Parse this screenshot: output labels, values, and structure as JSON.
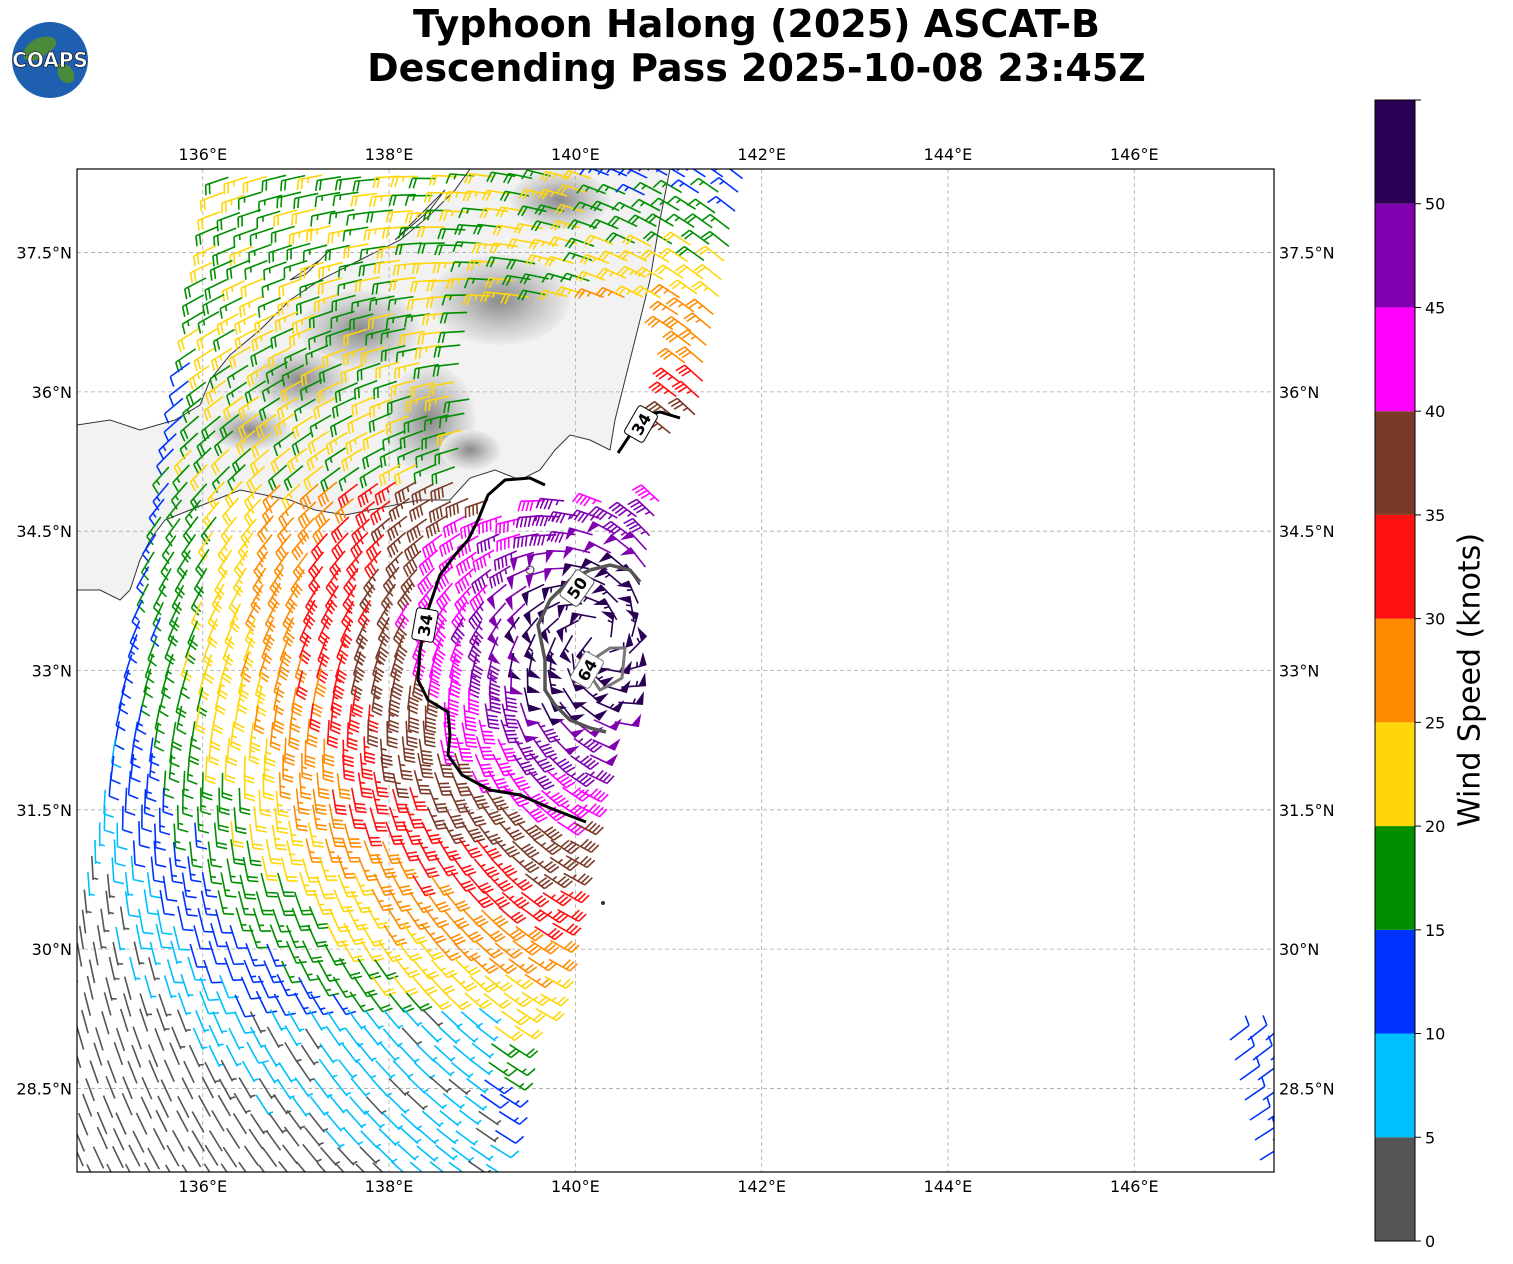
{
  "title": {
    "line1": "Typhoon Halong (2025) ASCAT-B",
    "line2": "Descending Pass 2025-10-08 23:45Z"
  },
  "logo": {
    "text": "COAPS",
    "icon": "globe-logo-icon"
  },
  "map": {
    "lon_range": [
      134.65,
      147.5
    ],
    "lat_range": [
      27.6,
      38.4
    ],
    "lon_ticks": [
      "136°E",
      "138°E",
      "140°E",
      "142°E",
      "144°E",
      "146°E"
    ],
    "lat_ticks": [
      "37.5°N",
      "36°N",
      "34.5°N",
      "33°N",
      "31.5°N",
      "30°N",
      "28.5°N"
    ],
    "gridlines": true,
    "land_shading": "grayscale terrain",
    "wind_barbs": "ASCAT-B descending swath, colored by wind speed",
    "wind_radii_contours": [
      {
        "label": "34",
        "color": "#000000"
      },
      {
        "label": "50",
        "color": "#555555"
      },
      {
        "label": "64",
        "color": "#777777"
      }
    ]
  },
  "colorbar": {
    "label": "Wind Speed (knots)",
    "ticks": [
      "0",
      "5",
      "10",
      "15",
      "20",
      "25",
      "30",
      "35",
      "40",
      "45",
      "50"
    ],
    "bins": [
      {
        "min": 0,
        "max": 5,
        "color": "#555555"
      },
      {
        "min": 5,
        "max": 10,
        "color": "#00bfff"
      },
      {
        "min": 10,
        "max": 15,
        "color": "#0033ff"
      },
      {
        "min": 15,
        "max": 20,
        "color": "#008f00"
      },
      {
        "min": 20,
        "max": 25,
        "color": "#ffd60a"
      },
      {
        "min": 25,
        "max": 30,
        "color": "#ff8c00"
      },
      {
        "min": 30,
        "max": 35,
        "color": "#ff1010"
      },
      {
        "min": 35,
        "max": 40,
        "color": "#7b3a28"
      },
      {
        "min": 40,
        "max": 45,
        "color": "#ff00ff"
      },
      {
        "min": 45,
        "max": 50,
        "color": "#8000b0"
      },
      {
        "min": 50,
        "max": 55,
        "color": "#2a0055"
      }
    ]
  }
}
